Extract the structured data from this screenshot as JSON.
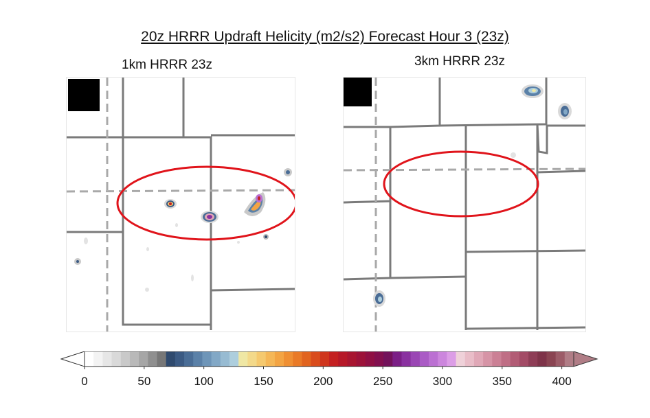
{
  "title": "20z HRRR Updraft Helicity (m2/s2)  Forecast Hour 3 (23z)",
  "panels": {
    "left": {
      "label": "1km HRRR 23z"
    },
    "right": {
      "label": "3km HRRR 23z"
    }
  },
  "colorbar": {
    "min": 0,
    "max": 410,
    "ticks": [
      0,
      50,
      100,
      150,
      200,
      250,
      300,
      350,
      400
    ],
    "colors": [
      "#ffffff",
      "#f3f3f3",
      "#e6e6e6",
      "#d9d9d9",
      "#c9c9c9",
      "#b9b9b9",
      "#a6a6a6",
      "#8f8f8f",
      "#777777",
      "#2f4a6e",
      "#3b5a83",
      "#4a6d96",
      "#5b81a8",
      "#6e95b8",
      "#82a8c6",
      "#97bbd2",
      "#adcedd",
      "#efe7a4",
      "#f3d98a",
      "#f5c96f",
      "#f5b757",
      "#f3a443",
      "#ef8f33",
      "#e97a27",
      "#e1641f",
      "#d94c1c",
      "#cf351d",
      "#c42021",
      "#b61828",
      "#a81530",
      "#9c1239",
      "#8f1044",
      "#82104f",
      "#73125b",
      "#7b1f86",
      "#8a31a0",
      "#9a46b4",
      "#aa5bc5",
      "#bb70d2",
      "#cc86dd",
      "#dc9de6",
      "#efd1d9",
      "#e9bdc8",
      "#e0a8b7",
      "#d694a6",
      "#cb8095",
      "#bf6e85",
      "#b25c75",
      "#a34b66",
      "#8e3d56",
      "#7e3349",
      "#8a4452",
      "#9c5c68",
      "#b07d86"
    ],
    "extend": "both"
  },
  "icon_names": [
    "mask-block",
    "storm-cell",
    "target-ellipse"
  ]
}
